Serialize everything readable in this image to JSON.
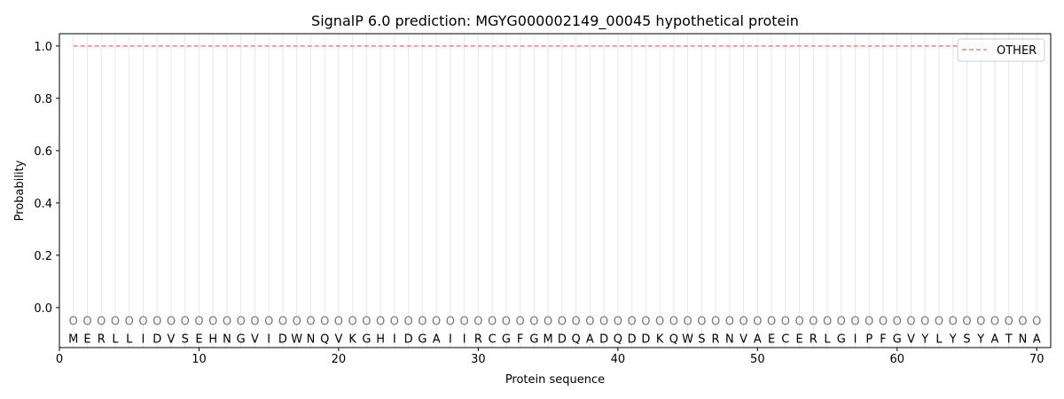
{
  "chart_data": {
    "type": "line",
    "title": "SignalP 6.0 prediction: MGYG000002149_00045 hypothetical protein",
    "xlabel": "Protein sequence",
    "ylabel": "Probability",
    "xlim": [
      0,
      71
    ],
    "ylim": [
      -0.153,
      1.047
    ],
    "xticks": [
      0,
      10,
      20,
      30,
      40,
      50,
      60,
      70
    ],
    "yticks": [
      "0.0",
      "0.2",
      "0.4",
      "0.6",
      "0.8",
      "1.0"
    ],
    "grid": "vertical lines at each residue",
    "legend_position": "top-right",
    "series": [
      {
        "name": "OTHER",
        "color": "#f08080",
        "style": "dashed",
        "x_range": [
          1,
          70
        ],
        "value": 1.0
      }
    ],
    "sequence": "MERLLIDVSEHNGVIDWNQVKGHIDGAIIRCGFGMDQADQDDKQWSRNVAECERLGIPFGVYLYSYATNA",
    "labels": "OOOOOOOOOOOOOOOOOOOOOOOOOOOOOOOOOOOOOOOOOOOOOOOOOOOOOOOOOOOOOOOOOOOOOO"
  }
}
